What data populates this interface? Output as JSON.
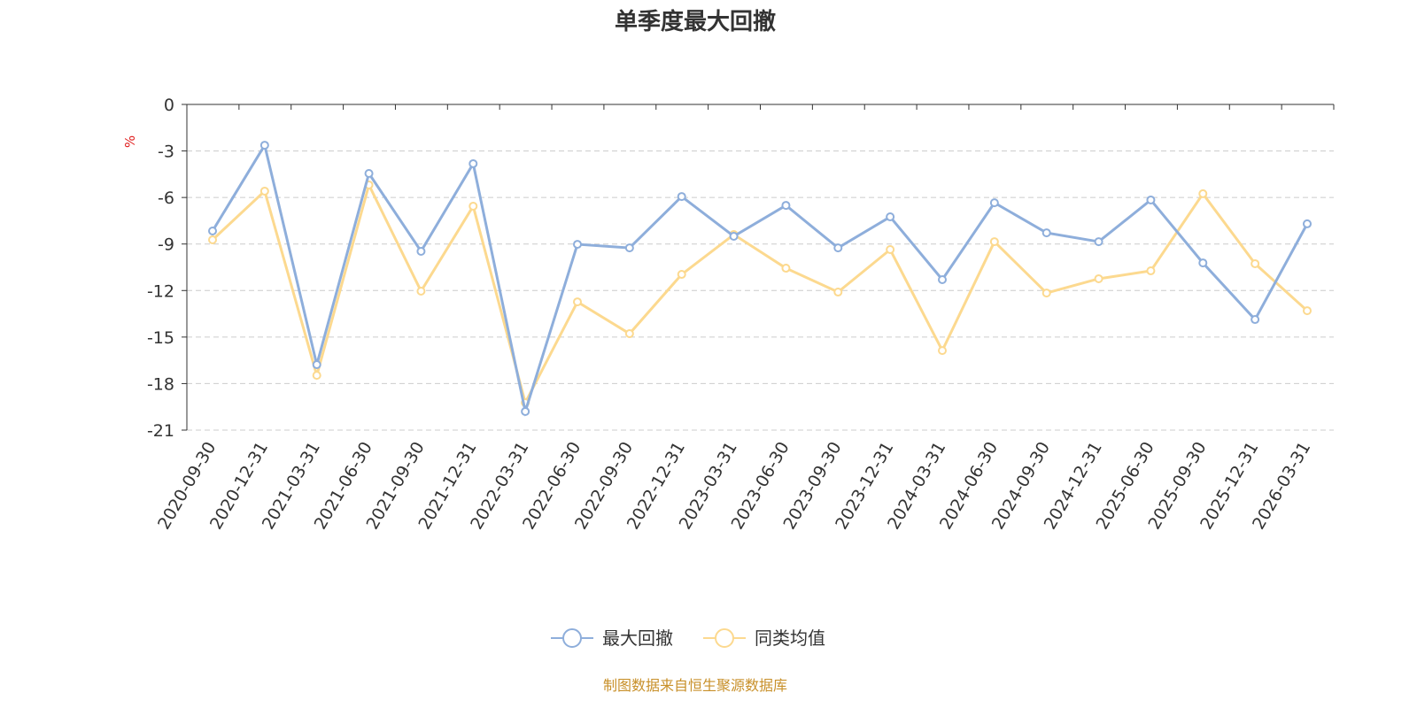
{
  "chart_data": {
    "type": "line",
    "title": "单季度最大回撤",
    "ylabel": "%",
    "xlabel": "",
    "ylim": [
      -21,
      0
    ],
    "yticks": [
      0,
      -3,
      -6,
      -9,
      -12,
      -15,
      -18,
      -21
    ],
    "grid": true,
    "legend_position": "bottom",
    "categories": [
      "2020-09-30",
      "2020-12-31",
      "2021-03-31",
      "2021-06-30",
      "2021-09-30",
      "2021-12-31",
      "2022-03-31",
      "2022-06-30",
      "2022-09-30",
      "2022-12-31",
      "2023-03-31",
      "2023-06-30",
      "2023-09-30",
      "2023-12-31",
      "2024-03-31",
      "2024-06-30",
      "2024-09-30",
      "2024-12-31",
      "2025-06-30",
      "2025-09-30",
      "2025-12-31",
      "2026-03-31"
    ],
    "series": [
      {
        "name": "最大回撤",
        "color": "#8eaedb",
        "values": [
          -8.16,
          -2.63,
          -16.78,
          -4.45,
          -9.47,
          -3.82,
          -19.8,
          -9.02,
          -9.25,
          -5.94,
          -8.5,
          -6.51,
          -9.25,
          -7.25,
          -11.3,
          -6.34,
          -8.28,
          -8.85,
          -6.16,
          -10.22,
          -13.87,
          -7.7
        ]
      },
      {
        "name": "同类均值",
        "color": "#fcd98f",
        "values": [
          -8.73,
          -5.59,
          -17.47,
          -5.19,
          -12.04,
          -6.56,
          -19.23,
          -12.73,
          -14.78,
          -10.96,
          -8.39,
          -10.56,
          -12.1,
          -9.36,
          -15.87,
          -8.85,
          -12.16,
          -11.24,
          -10.73,
          -5.76,
          -10.27,
          -13.3
        ]
      }
    ]
  },
  "source": "制图数据来自恒生聚源数据库"
}
